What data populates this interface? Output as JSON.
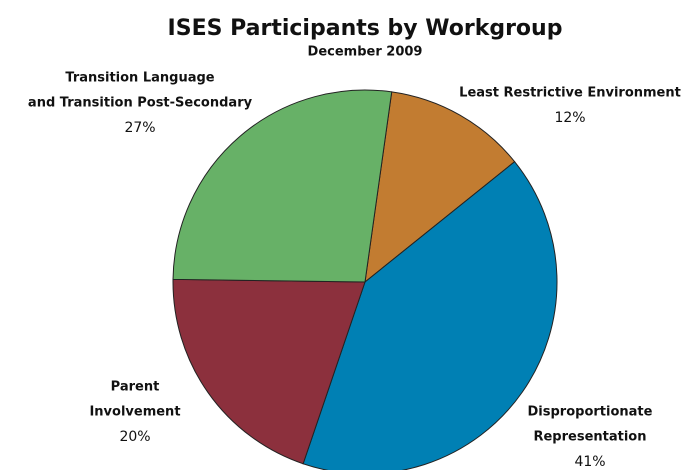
{
  "chart_data": {
    "type": "pie",
    "title": "ISES Participants by Workgroup",
    "subtitle": "December 2009",
    "categories": [
      [
        "Least Restrictive Environment"
      ],
      [
        "Disproportionate",
        "Representation"
      ],
      [
        "Parent",
        "Involvement"
      ],
      [
        "Transition Language",
        "and Transition Post-Secondary"
      ]
    ],
    "values": [
      12,
      41,
      20,
      27
    ],
    "value_labels": [
      "12%",
      "41%",
      "20%",
      "27%"
    ],
    "colors": [
      "#c27c31",
      "#0080b4",
      "#8c303d",
      "#67b167"
    ]
  }
}
